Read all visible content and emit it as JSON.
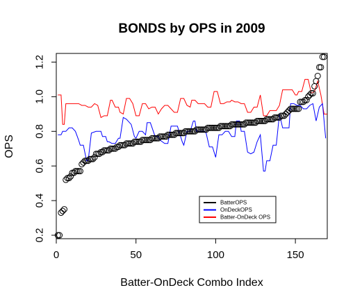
{
  "chart_data": {
    "type": "line",
    "title": "BONDS by OPS in 2009",
    "xlabel": "Batter-OnDeck Combo Index",
    "ylabel": "OPS",
    "xlim": [
      0,
      170
    ],
    "ylim": [
      0.18,
      1.25
    ],
    "xticks": [
      0,
      50,
      100,
      150
    ],
    "yticks": [
      0.2,
      0.4,
      0.6,
      0.8,
      1.0,
      1.2
    ],
    "xtick_labels": [
      "0",
      "50",
      "100",
      "150"
    ],
    "ytick_labels": [
      "0.2",
      "0.4",
      "0.6",
      "0.8",
      "1.0",
      "1.2"
    ],
    "grid": false,
    "legend_position": "bottom-right",
    "legend": [
      {
        "label": "BatterOPS",
        "color": "#000000"
      },
      {
        "label": "OnDeckOPS",
        "color": "#0000ff"
      },
      {
        "label": "Batter-OnDeck OPS",
        "color": "#ff0000"
      }
    ],
    "series": [
      {
        "name": "BatterOPS",
        "style": "points",
        "color": "#000000",
        "x_start": 1,
        "values": [
          0.2,
          0.2,
          0.33,
          0.34,
          0.35,
          0.52,
          0.53,
          0.53,
          0.54,
          0.56,
          0.56,
          0.57,
          0.57,
          0.57,
          0.57,
          0.61,
          0.62,
          0.63,
          0.63,
          0.63,
          0.64,
          0.64,
          0.64,
          0.65,
          0.67,
          0.67,
          0.67,
          0.68,
          0.68,
          0.69,
          0.69,
          0.69,
          0.69,
          0.7,
          0.7,
          0.7,
          0.7,
          0.71,
          0.71,
          0.72,
          0.72,
          0.72,
          0.72,
          0.73,
          0.73,
          0.73,
          0.73,
          0.73,
          0.74,
          0.74,
          0.74,
          0.74,
          0.74,
          0.75,
          0.75,
          0.75,
          0.75,
          0.75,
          0.75,
          0.76,
          0.76,
          0.76,
          0.76,
          0.76,
          0.77,
          0.77,
          0.77,
          0.77,
          0.77,
          0.78,
          0.78,
          0.78,
          0.78,
          0.78,
          0.79,
          0.79,
          0.79,
          0.79,
          0.79,
          0.79,
          0.8,
          0.8,
          0.8,
          0.8,
          0.8,
          0.8,
          0.8,
          0.81,
          0.81,
          0.81,
          0.81,
          0.81,
          0.81,
          0.81,
          0.82,
          0.82,
          0.82,
          0.82,
          0.82,
          0.82,
          0.82,
          0.82,
          0.83,
          0.83,
          0.83,
          0.83,
          0.83,
          0.83,
          0.83,
          0.84,
          0.84,
          0.84,
          0.84,
          0.84,
          0.84,
          0.84,
          0.84,
          0.84,
          0.85,
          0.85,
          0.85,
          0.85,
          0.85,
          0.85,
          0.85,
          0.86,
          0.86,
          0.86,
          0.86,
          0.86,
          0.86,
          0.87,
          0.87,
          0.87,
          0.87,
          0.87,
          0.88,
          0.88,
          0.88,
          0.88,
          0.89,
          0.89,
          0.89,
          0.9,
          0.91,
          0.92,
          0.93,
          0.93,
          0.93,
          0.93,
          0.93,
          0.93,
          0.97,
          0.97,
          0.97,
          0.98,
          0.98,
          1.0,
          1.01,
          1.02,
          1.02,
          1.06,
          1.09,
          1.12,
          1.17,
          1.17,
          1.23,
          1.23
        ]
      },
      {
        "name": "OnDeckOPS",
        "style": "line",
        "color": "#0000ff",
        "x": [
          1,
          3,
          4,
          6,
          8,
          10,
          12,
          14,
          15,
          17,
          19,
          20,
          22,
          25,
          28,
          29,
          31,
          32,
          33,
          35,
          37,
          39,
          40,
          42,
          44,
          45,
          47,
          49,
          50,
          52,
          54,
          56,
          57,
          59,
          62,
          64,
          65,
          68,
          70,
          72,
          74,
          76,
          79,
          80,
          82,
          84,
          86,
          87,
          88,
          90,
          93,
          94,
          96,
          98,
          100,
          102,
          104,
          106,
          108,
          110,
          112,
          113,
          115,
          116,
          118,
          120,
          122,
          124,
          126,
          128,
          130,
          131,
          132,
          134,
          136,
          138,
          140,
          142,
          144,
          146,
          147,
          149,
          151,
          153,
          155,
          157,
          159,
          161,
          163,
          165,
          167,
          169
        ],
        "values": [
          0.78,
          0.78,
          0.8,
          0.8,
          0.82,
          0.82,
          0.8,
          0.75,
          0.72,
          0.72,
          0.63,
          0.63,
          0.79,
          0.8,
          0.8,
          0.77,
          0.77,
          0.74,
          0.74,
          0.73,
          0.73,
          0.76,
          0.76,
          0.88,
          0.87,
          0.86,
          0.84,
          0.77,
          0.76,
          0.8,
          0.8,
          0.78,
          0.85,
          0.85,
          0.77,
          0.77,
          0.75,
          0.73,
          0.73,
          0.83,
          0.83,
          0.83,
          0.74,
          0.72,
          0.8,
          0.8,
          0.86,
          0.86,
          0.8,
          0.8,
          0.8,
          0.79,
          0.71,
          0.71,
          0.65,
          0.78,
          0.78,
          0.8,
          0.8,
          0.77,
          0.77,
          0.86,
          0.86,
          0.8,
          0.8,
          0.68,
          0.67,
          0.68,
          0.74,
          0.78,
          0.57,
          0.57,
          0.63,
          0.63,
          0.72,
          0.72,
          0.9,
          0.82,
          0.82,
          0.82,
          0.96,
          0.96,
          0.95,
          0.95,
          0.93,
          0.93,
          0.95,
          0.96,
          0.86,
          0.94,
          0.96,
          0.76
        ]
      },
      {
        "name": "Batter-OnDeck OPS",
        "style": "line",
        "color": "#ff0000",
        "x": [
          1,
          3,
          4,
          5,
          6,
          8,
          10,
          12,
          14,
          16,
          18,
          20,
          22,
          24,
          26,
          28,
          30,
          32,
          34,
          35,
          37,
          39,
          40,
          42,
          44,
          46,
          48,
          50,
          52,
          54,
          56,
          58,
          60,
          62,
          64,
          66,
          68,
          70,
          72,
          74,
          76,
          78,
          80,
          82,
          84,
          85,
          87,
          89,
          91,
          93,
          95,
          97,
          99,
          101,
          103,
          105,
          107,
          109,
          110,
          112,
          114,
          116,
          118,
          120,
          122,
          124,
          126,
          128,
          130,
          132,
          134,
          136,
          138,
          140,
          142,
          144,
          146,
          148,
          150,
          151,
          152,
          154,
          156,
          158,
          160,
          162,
          164,
          166,
          168,
          170
        ],
        "values": [
          1.01,
          1.01,
          0.84,
          0.84,
          0.96,
          0.96,
          0.96,
          0.96,
          0.96,
          0.95,
          0.95,
          0.94,
          0.94,
          0.96,
          0.95,
          0.88,
          0.89,
          0.89,
          0.98,
          0.98,
          0.94,
          0.94,
          0.91,
          0.9,
          0.99,
          0.99,
          0.96,
          0.89,
          0.89,
          0.96,
          0.96,
          0.93,
          0.94,
          0.94,
          0.9,
          0.93,
          0.95,
          0.95,
          0.93,
          0.91,
          0.91,
          0.99,
          0.99,
          0.95,
          0.94,
          0.98,
          0.98,
          0.96,
          0.96,
          0.96,
          0.94,
          0.94,
          1.03,
          1.03,
          0.96,
          0.96,
          0.97,
          0.97,
          0.98,
          0.97,
          0.97,
          0.96,
          0.96,
          0.91,
          0.91,
          0.94,
          0.94,
          1.01,
          0.89,
          0.89,
          0.92,
          0.92,
          0.92,
          0.95,
          1.04,
          1.04,
          1.04,
          1.04,
          1.01,
          1.01,
          1.03,
          1.03,
          1.1,
          1.1,
          1.02,
          1.03,
          1.09,
          1.01,
          0.9,
          0.9
        ]
      }
    ]
  }
}
